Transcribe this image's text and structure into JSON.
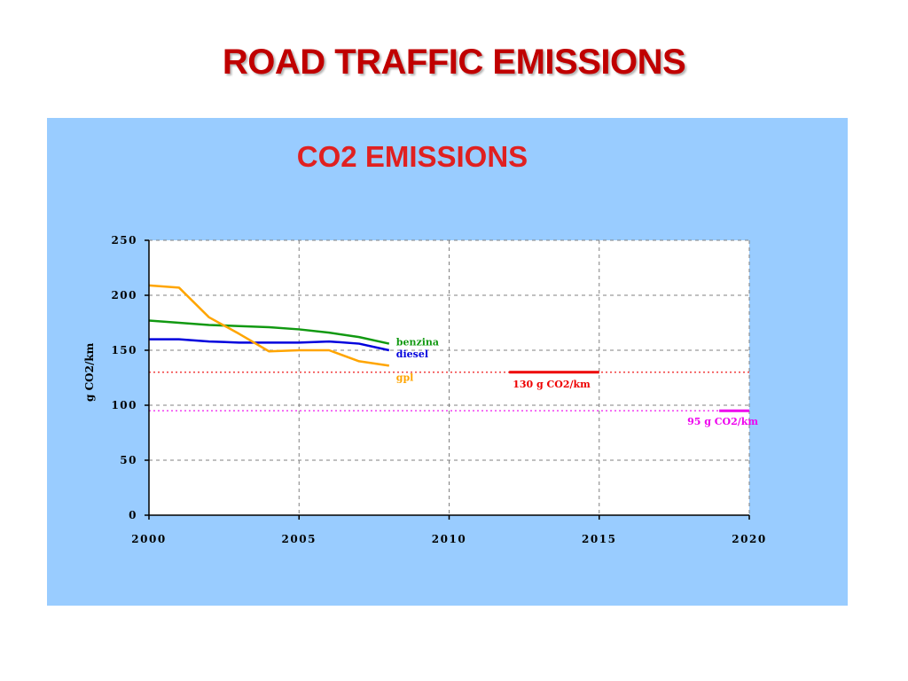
{
  "slide": {
    "title": "ROAD TRAFFIC  EMISSIONS"
  },
  "colors": {
    "panel_background": "#99ccff",
    "plot_background": "#ffffff",
    "title": "#c00000",
    "chart_title": "#e02020"
  },
  "chart_data": {
    "type": "line",
    "title": "CO2 EMISSIONS",
    "xlabel": "",
    "ylabel": "g CO2/km",
    "xlim": [
      2000,
      2020
    ],
    "ylim": [
      0,
      250
    ],
    "x_ticks": [
      2000,
      2005,
      2010,
      2015,
      2020
    ],
    "y_ticks": [
      0,
      50,
      100,
      150,
      200,
      250
    ],
    "grid": true,
    "series": [
      {
        "name": "benzina",
        "color": "#119911",
        "points": [
          [
            2000,
            177
          ],
          [
            2001,
            175
          ],
          [
            2002,
            173
          ],
          [
            2003,
            172
          ],
          [
            2004,
            171
          ],
          [
            2005,
            169
          ],
          [
            2006,
            166
          ],
          [
            2007,
            162
          ],
          [
            2008,
            156
          ]
        ]
      },
      {
        "name": "diesel",
        "color": "#0000dd",
        "points": [
          [
            2000,
            160
          ],
          [
            2001,
            160
          ],
          [
            2002,
            158
          ],
          [
            2003,
            157
          ],
          [
            2004,
            157
          ],
          [
            2005,
            157
          ],
          [
            2006,
            158
          ],
          [
            2007,
            156
          ],
          [
            2008,
            150
          ]
        ]
      },
      {
        "name": "gpl",
        "color": "#ffa500",
        "points": [
          [
            2000,
            209
          ],
          [
            2001,
            207
          ],
          [
            2002,
            180
          ],
          [
            2003,
            165
          ],
          [
            2004,
            149
          ],
          [
            2005,
            150
          ],
          [
            2006,
            150
          ],
          [
            2007,
            140
          ],
          [
            2008,
            136
          ]
        ]
      }
    ],
    "reference_lines": [
      {
        "label": "130 g CO2/km",
        "value": 130,
        "color": "#ee0000",
        "target_from": 2012,
        "target_to": 2015
      },
      {
        "label": "95 g CO2/km",
        "value": 95,
        "color": "#ee00ee",
        "target_from": 2019,
        "target_to": 2020
      }
    ]
  }
}
